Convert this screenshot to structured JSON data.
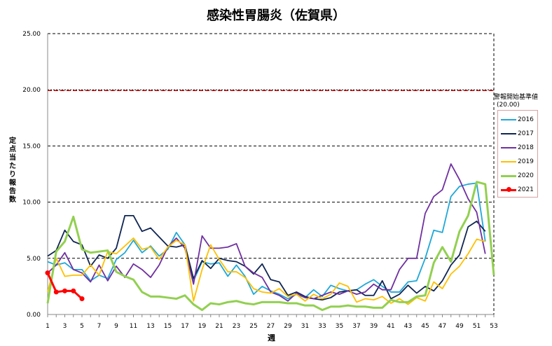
{
  "chart_data": {
    "type": "line",
    "title": "感染性胃腸炎（佐賀県）",
    "xlabel": "週",
    "ylabel": "定点当たり報告数",
    "ylim": [
      0,
      25
    ],
    "xlim": [
      1,
      53
    ],
    "yticks": [
      "0.00",
      "5.00",
      "10.00",
      "15.00",
      "20.00",
      "25.00"
    ],
    "xticks": [
      1,
      3,
      5,
      7,
      9,
      11,
      13,
      15,
      17,
      19,
      21,
      23,
      25,
      27,
      29,
      31,
      33,
      35,
      37,
      39,
      41,
      43,
      45,
      47,
      49,
      51,
      53
    ],
    "grid": true,
    "legend_position": "right",
    "threshold": {
      "label": "警報開始基準値",
      "value_label": "(20.00)",
      "value": 20,
      "color": "#c00000"
    },
    "series": [
      {
        "name": "2016",
        "color": "#1fa8d8",
        "width": 1.8,
        "values": [
          4.7,
          4.4,
          4.6,
          4.0,
          4.0,
          3.0,
          3.5,
          3.2,
          4.9,
          5.5,
          6.6,
          5.5,
          6.1,
          5.2,
          5.8,
          7.3,
          6.2,
          3.0,
          4.7,
          4.5,
          4.6,
          3.4,
          4.4,
          3.4,
          1.8,
          2.5,
          2.1,
          1.8,
          1.4,
          1.8,
          1.5,
          2.2,
          1.6,
          2.6,
          2.3,
          2.1,
          2.2,
          2.7,
          3.1,
          2.5,
          2.0,
          2.0,
          2.9,
          3.0,
          5.0,
          7.5,
          7.3,
          10.5,
          11.4,
          11.6,
          11.7,
          6.5
        ]
      },
      {
        "name": "2017",
        "color": "#0f2552",
        "width": 1.8,
        "values": [
          5.2,
          5.7,
          7.5,
          6.5,
          6.2,
          4.3,
          5.3,
          5.0,
          5.9,
          8.8,
          8.8,
          7.4,
          7.7,
          6.9,
          6.1,
          6.0,
          6.2,
          3.2,
          4.8,
          4.1,
          5.0,
          4.8,
          4.7,
          4.3,
          3.6,
          4.5,
          3.1,
          2.9,
          1.7,
          2.0,
          1.6,
          1.4,
          1.3,
          1.5,
          2.0,
          2.1,
          2.2,
          1.7,
          1.7,
          3.0,
          1.4,
          1.8,
          2.6,
          1.9,
          2.5,
          2.1,
          3.0,
          4.4,
          5.3,
          7.8,
          8.3,
          7.4
        ]
      },
      {
        "name": "2018",
        "color": "#7030a0",
        "width": 1.8,
        "values": [
          3.7,
          4.4,
          5.5,
          4.0,
          3.7,
          2.9,
          4.4,
          3.0,
          4.3,
          3.3,
          4.5,
          4.0,
          3.3,
          4.4,
          6.0,
          6.8,
          5.9,
          2.7,
          7.0,
          5.9,
          5.9,
          6.0,
          6.3,
          4.3,
          3.7,
          3.3,
          2.0,
          1.7,
          1.2,
          1.9,
          1.5,
          1.4,
          1.7,
          2.0,
          1.8,
          2.1,
          1.8,
          2.0,
          2.7,
          2.2,
          2.2,
          4.0,
          5.0,
          5.0,
          9.0,
          10.5,
          11.1,
          13.4,
          12.0,
          10.3,
          9.1,
          5.4
        ]
      },
      {
        "name": "2019",
        "color": "#ffc000",
        "width": 1.8,
        "values": [
          2.0,
          5.0,
          3.4,
          3.5,
          3.5,
          4.4,
          3.5,
          5.6,
          5.4,
          6.1,
          6.8,
          5.8,
          6.0,
          4.9,
          6.0,
          6.6,
          6.2,
          1.2,
          4.0,
          6.2,
          4.9,
          3.8,
          3.8,
          3.3,
          2.3,
          2.0,
          1.9,
          2.3,
          1.6,
          1.8,
          1.2,
          1.8,
          1.4,
          1.8,
          2.8,
          2.5,
          1.1,
          1.4,
          1.3,
          1.6,
          1.0,
          1.4,
          0.9,
          1.5,
          1.2,
          2.9,
          2.3,
          3.6,
          4.3,
          5.4,
          6.7,
          6.5
        ]
      },
      {
        "name": "2020",
        "color": "#92d050",
        "width": 3,
        "values": [
          1.0,
          5.6,
          6.5,
          8.7,
          5.8,
          5.5,
          5.6,
          5.7,
          3.8,
          3.4,
          3.1,
          2.0,
          1.6,
          1.6,
          1.5,
          1.4,
          1.7,
          0.9,
          0.4,
          1.0,
          0.9,
          1.1,
          1.2,
          1.0,
          0.9,
          1.1,
          1.1,
          1.1,
          1.0,
          1.0,
          0.8,
          0.8,
          0.4,
          0.7,
          0.7,
          0.8,
          0.7,
          0.7,
          0.6,
          0.6,
          1.3,
          1.1,
          1.1,
          1.6,
          1.7,
          4.6,
          6.0,
          4.7,
          7.4,
          8.8,
          11.8,
          11.6,
          3.5
        ]
      },
      {
        "name": "2021",
        "color": "#ff0000",
        "width": 3,
        "markers": true,
        "values": [
          3.7,
          2.0,
          2.1,
          2.1,
          1.4
        ]
      }
    ]
  }
}
